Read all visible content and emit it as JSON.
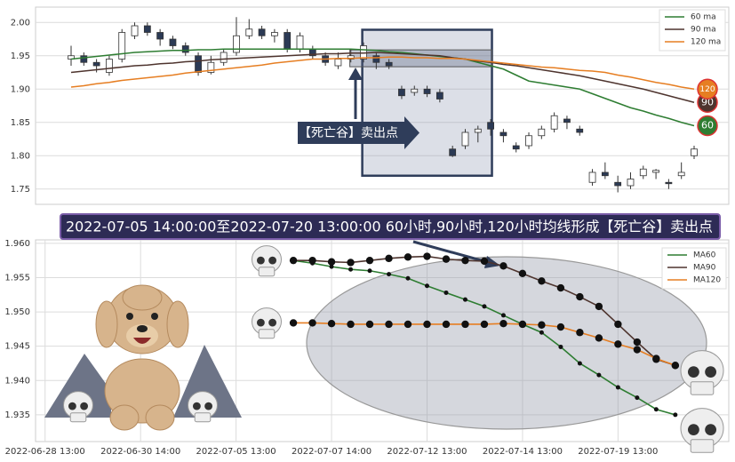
{
  "chart_data": [
    {
      "type": "candlestick",
      "open": [
        1.945,
        1.95,
        1.94,
        1.925,
        1.945,
        1.98,
        1.995,
        1.985,
        1.975,
        1.965,
        1.95,
        1.925,
        1.94,
        1.955,
        1.98,
        1.99,
        1.98,
        1.985,
        1.96,
        1.96,
        1.95,
        1.935,
        1.945,
        1.945,
        1.95,
        1.94,
        1.9,
        1.895,
        1.9,
        1.895,
        1.81,
        1.815,
        1.835,
        1.85,
        1.835,
        1.815,
        1.815,
        1.83,
        1.84,
        1.855,
        1.84,
        1.76,
        1.775,
        1.76,
        1.755,
        1.77,
        1.775,
        1.76,
        1.77,
        1.8
      ],
      "high": [
        1.965,
        1.955,
        1.945,
        1.95,
        1.99,
        2.0,
        2.0,
        1.99,
        1.98,
        1.97,
        1.955,
        1.95,
        1.96,
        2.008,
        2.005,
        1.995,
        1.99,
        1.99,
        1.985,
        1.965,
        1.955,
        1.955,
        1.96,
        1.97,
        1.955,
        1.945,
        1.905,
        1.905,
        1.905,
        1.9,
        1.815,
        1.84,
        1.845,
        1.855,
        1.84,
        1.82,
        1.835,
        1.845,
        1.865,
        1.86,
        1.845,
        1.78,
        1.79,
        1.77,
        1.775,
        1.785,
        1.78,
        1.765,
        1.79,
        1.815
      ],
      "low": [
        1.935,
        1.935,
        1.925,
        1.92,
        1.94,
        1.975,
        1.98,
        1.965,
        1.96,
        1.95,
        1.92,
        1.922,
        1.935,
        1.95,
        1.975,
        1.975,
        1.97,
        1.955,
        1.955,
        1.945,
        1.935,
        1.93,
        1.94,
        1.94,
        1.93,
        1.93,
        1.885,
        1.89,
        1.888,
        1.88,
        1.798,
        1.81,
        1.82,
        1.83,
        1.82,
        1.805,
        1.81,
        1.825,
        1.835,
        1.84,
        1.83,
        1.755,
        1.765,
        1.745,
        1.75,
        1.765,
        1.765,
        1.75,
        1.765,
        1.795
      ],
      "close": [
        1.95,
        1.94,
        1.935,
        1.945,
        1.985,
        1.995,
        1.985,
        1.975,
        1.965,
        1.955,
        1.925,
        1.94,
        1.955,
        1.98,
        1.99,
        1.98,
        1.985,
        1.96,
        1.98,
        1.95,
        1.94,
        1.945,
        1.95,
        1.965,
        1.94,
        1.935,
        1.89,
        1.9,
        1.893,
        1.885,
        1.8,
        1.835,
        1.84,
        1.84,
        1.83,
        1.81,
        1.83,
        1.84,
        1.86,
        1.85,
        1.835,
        1.775,
        1.77,
        1.755,
        1.765,
        1.78,
        1.778,
        1.758,
        1.775,
        1.81
      ],
      "up_color": "#ffffff",
      "down_color": "#2b3a55",
      "series": [
        {
          "name": "60 ma",
          "color": "#2e7d32",
          "end_label": "60",
          "values": [
            1.945,
            1.947,
            1.949,
            1.951,
            1.953,
            1.955,
            1.956,
            1.957,
            1.958,
            1.958,
            1.959,
            1.959,
            1.96,
            1.96,
            1.96,
            1.96,
            1.96,
            1.96,
            1.96,
            1.96,
            1.96,
            1.96,
            1.96,
            1.959,
            1.958,
            1.956,
            1.955,
            1.953,
            1.951,
            1.949,
            1.947,
            1.945,
            1.94,
            1.935,
            1.93,
            1.921,
            1.912,
            1.909,
            1.906,
            1.903,
            1.9,
            1.893,
            1.886,
            1.879,
            1.872,
            1.867,
            1.861,
            1.856,
            1.85,
            1.845
          ]
        },
        {
          "name": "90 ma",
          "color": "#4e342e",
          "end_label": "90",
          "values": [
            1.925,
            1.927,
            1.929,
            1.931,
            1.933,
            1.935,
            1.936,
            1.938,
            1.939,
            1.941,
            1.942,
            1.944,
            1.945,
            1.946,
            1.947,
            1.948,
            1.949,
            1.95,
            1.951,
            1.952,
            1.953,
            1.953,
            1.954,
            1.954,
            1.955,
            1.954,
            1.953,
            1.952,
            1.951,
            1.95,
            1.947,
            1.945,
            1.942,
            1.94,
            1.937,
            1.935,
            1.932,
            1.929,
            1.926,
            1.923,
            1.92,
            1.916,
            1.912,
            1.908,
            1.904,
            1.9,
            1.895,
            1.89,
            1.885,
            1.88
          ]
        },
        {
          "name": "120 ma",
          "color": "#e67e22",
          "end_label": "120",
          "values": [
            1.903,
            1.905,
            1.908,
            1.91,
            1.913,
            1.915,
            1.917,
            1.919,
            1.921,
            1.924,
            1.926,
            1.928,
            1.93,
            1.932,
            1.934,
            1.936,
            1.939,
            1.941,
            1.943,
            1.945,
            1.945,
            1.946,
            1.946,
            1.947,
            1.947,
            1.948,
            1.948,
            1.947,
            1.947,
            1.946,
            1.946,
            1.945,
            1.943,
            1.941,
            1.939,
            1.937,
            1.935,
            1.933,
            1.932,
            1.93,
            1.928,
            1.927,
            1.925,
            1.921,
            1.918,
            1.914,
            1.91,
            1.907,
            1.903,
            1.9
          ]
        }
      ],
      "ylim": [
        1.727,
        2.023
      ],
      "yticks": [
        1.75,
        {
          "value": 1.8,
          "label": "1.80"
        },
        1.85,
        {
          "value": 1.9,
          "label": "1.90"
        },
        1.95,
        {
          "value": 2,
          "label": "2.00"
        }
      ],
      "grid": true,
      "legend": "upper right",
      "highlight": {
        "x": [
          22.9,
          33.1
        ],
        "y": [
          1.77,
          1.989
        ],
        "band": [
          1.9335,
          1.9588
        ]
      },
      "annotation": "【死亡谷】卖出点"
    },
    {
      "type": "line",
      "title": "2022-07-05 14:00:00至2022-07-20 13:00:00 60小时,90小时,120小时均线形成【死亡谷】卖出点",
      "x": [
        0,
        1,
        2,
        3,
        4,
        5,
        6,
        7,
        8,
        9,
        10,
        11,
        12,
        13,
        14,
        15,
        16,
        17,
        18,
        19,
        20
      ],
      "series": [
        {
          "name": "MA60",
          "color": "#2e7d32",
          "values": [
            1.9575,
            1.9571,
            1.9566,
            1.9562,
            1.956,
            1.9555,
            1.9549,
            1.9538,
            1.9528,
            1.9518,
            1.9508,
            1.9495,
            1.9482,
            1.947,
            1.9449,
            1.9425,
            1.9408,
            1.939,
            1.9375,
            1.9358,
            1.935
          ]
        },
        {
          "name": "MA90",
          "color": "#4e342e",
          "values": [
            1.9575,
            1.9575,
            1.9573,
            1.9572,
            1.9575,
            1.9578,
            1.958,
            1.9581,
            1.9577,
            1.9575,
            1.9574,
            1.9567,
            1.9556,
            1.9545,
            1.9535,
            1.9522,
            1.9508,
            1.9482,
            1.9456,
            1.9431,
            1.9422
          ]
        },
        {
          "name": "MA120",
          "color": "#e67e22",
          "values": [
            1.9484,
            1.9484,
            1.9483,
            1.9482,
            1.9482,
            1.9482,
            1.9482,
            1.9482,
            1.9482,
            1.9482,
            1.9482,
            1.9483,
            1.9482,
            1.9481,
            1.9478,
            1.947,
            1.9462,
            1.9453,
            1.9445,
            1.9432,
            1.9422
          ]
        }
      ],
      "xlim": [
        -13.5,
        22.8
      ],
      "xticks": [
        {
          "value": -13,
          "label": "2022-06-28 13:00"
        },
        {
          "value": -8,
          "label": "2022-06-30 14:00"
        },
        {
          "value": -3,
          "label": "2022-07-05 13:00"
        },
        {
          "value": 2,
          "label": "2022-07-07 14:00"
        },
        {
          "value": 7,
          "label": "2022-07-12 13:00"
        },
        {
          "value": 12,
          "label": "2022-07-14 13:00"
        },
        {
          "value": 17,
          "label": "2022-07-19 13:00"
        }
      ],
      "ylim": [
        1.9311,
        1.9605
      ],
      "yticks": [
        1.935,
        {
          "value": 1.94,
          "label": "1.940"
        },
        1.945,
        {
          "value": 1.95,
          "label": "1.950"
        },
        1.955,
        {
          "value": 1.96,
          "label": "1.960"
        }
      ],
      "grid": true,
      "legend": "upper right"
    }
  ]
}
